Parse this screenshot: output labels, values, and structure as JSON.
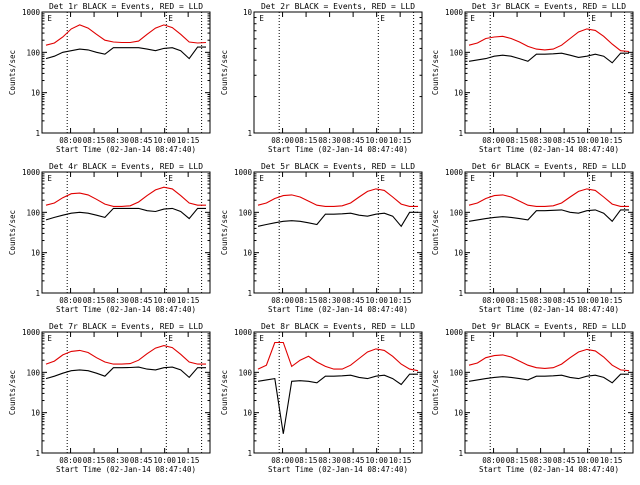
{
  "chart_data": [
    {
      "type": "line",
      "title": "Det 1r BLACK = Events, RED = LLD",
      "xlabel": "Start Time (02-Jan-14 08:47:40)",
      "ylabel": "Counts/sec",
      "ylim": [
        1,
        1000
      ],
      "yscale": "log",
      "x_ticks": [
        "08:00",
        "08:15",
        "08:30",
        "08:45",
        "10:00",
        "10:15"
      ],
      "markers": [
        "E",
        "E"
      ],
      "series": [
        {
          "name": "LLD",
          "color": "#e00000",
          "values": [
            150,
            170,
            240,
            380,
            480,
            400,
            280,
            200,
            180,
            175,
            175,
            190,
            280,
            400,
            480,
            410,
            280,
            180,
            170,
            175
          ]
        },
        {
          "name": "Events",
          "color": "#000000",
          "values": [
            70,
            80,
            100,
            110,
            120,
            115,
            100,
            90,
            130,
            130,
            130,
            130,
            120,
            110,
            125,
            130,
            110,
            70,
            135,
            135
          ]
        }
      ]
    },
    {
      "type": "line",
      "title": "Det 2r BLACK = Events, RED = LLD",
      "xlabel": "Start Time (02-Jan-14 08:47:40)",
      "ylabel": "Counts/sec",
      "ylim": [
        1,
        10
      ],
      "yscale": "log",
      "x_ticks": [
        "08:00",
        "08:15",
        "08:30",
        "08:45",
        "10:00",
        "10:15"
      ],
      "markers": [
        "E",
        "E"
      ],
      "series": []
    },
    {
      "type": "line",
      "title": "Det 3r BLACK = Events, RED = LLD",
      "xlabel": "Start Time (02-Jan-14 08:47:40)",
      "ylabel": "Counts/sec",
      "ylim": [
        1,
        1000
      ],
      "yscale": "log",
      "x_ticks": [
        "08:00",
        "08:15",
        "08:30",
        "08:45",
        "10:00",
        "10:15"
      ],
      "markers": [
        "E",
        "E"
      ],
      "series": [
        {
          "name": "LLD",
          "color": "#e00000",
          "values": [
            150,
            170,
            220,
            240,
            250,
            220,
            180,
            140,
            120,
            115,
            120,
            150,
            220,
            320,
            380,
            350,
            250,
            160,
            110,
            105
          ]
        },
        {
          "name": "Events",
          "color": "#000000",
          "values": [
            60,
            65,
            70,
            80,
            85,
            80,
            70,
            60,
            90,
            90,
            92,
            95,
            85,
            75,
            80,
            90,
            80,
            55,
            95,
            95
          ]
        }
      ]
    },
    {
      "type": "line",
      "title": "Det 4r BLACK = Events, RED = LLD",
      "xlabel": "Start Time (02-Jan-14 08:47:40)",
      "ylabel": "Counts/sec",
      "ylim": [
        1,
        1000
      ],
      "yscale": "log",
      "x_ticks": [
        "08:00",
        "08:15",
        "08:30",
        "08:45",
        "10:00",
        "10:15"
      ],
      "markers": [
        "E",
        "E"
      ],
      "series": [
        {
          "name": "LLD",
          "color": "#e00000",
          "values": [
            150,
            170,
            230,
            290,
            300,
            270,
            210,
            160,
            140,
            140,
            145,
            180,
            260,
            360,
            420,
            380,
            260,
            170,
            150,
            150
          ]
        },
        {
          "name": "Events",
          "color": "#000000",
          "values": [
            65,
            75,
            85,
            95,
            100,
            95,
            85,
            75,
            125,
            125,
            125,
            125,
            110,
            105,
            120,
            125,
            105,
            70,
            125,
            125
          ]
        }
      ]
    },
    {
      "type": "line",
      "title": "Det 5r BLACK = Events, RED = LLD",
      "xlabel": "Start Time (02-Jan-14 08:47:40)",
      "ylabel": "Counts/sec",
      "ylim": [
        1,
        1000
      ],
      "yscale": "log",
      "x_ticks": [
        "08:00",
        "08:15",
        "08:30",
        "08:45",
        "10:00",
        "10:15"
      ],
      "markers": [
        "E",
        "E"
      ],
      "series": [
        {
          "name": "LLD",
          "color": "#e00000",
          "values": [
            150,
            170,
            220,
            260,
            270,
            240,
            190,
            150,
            140,
            140,
            145,
            170,
            240,
            330,
            380,
            350,
            240,
            160,
            140,
            140
          ]
        },
        {
          "name": "Events",
          "color": "#000000",
          "values": [
            45,
            50,
            55,
            60,
            62,
            60,
            55,
            50,
            90,
            90,
            92,
            95,
            85,
            80,
            90,
            95,
            80,
            45,
            100,
            100
          ]
        }
      ]
    },
    {
      "type": "line",
      "title": "Det 6r BLACK = Events, RED = LLD",
      "xlabel": "Start Time (02-Jan-14 08:47:40)",
      "ylabel": "Counts/sec",
      "ylim": [
        1,
        1000
      ],
      "yscale": "log",
      "x_ticks": [
        "08:00",
        "08:15",
        "08:30",
        "08:45",
        "10:00",
        "10:15"
      ],
      "markers": [
        "E",
        "E"
      ],
      "series": [
        {
          "name": "LLD",
          "color": "#e00000",
          "values": [
            150,
            170,
            220,
            260,
            270,
            240,
            190,
            150,
            140,
            140,
            145,
            170,
            240,
            330,
            380,
            350,
            240,
            160,
            140,
            140
          ]
        },
        {
          "name": "Events",
          "color": "#000000",
          "values": [
            60,
            65,
            70,
            75,
            78,
            75,
            70,
            65,
            110,
            110,
            112,
            115,
            100,
            95,
            110,
            115,
            95,
            60,
            115,
            115
          ]
        }
      ]
    },
    {
      "type": "line",
      "title": "Det 7r BLACK = Events, RED = LLD",
      "xlabel": "Start Time (02-Jan-14 08:47:40)",
      "ylabel": "Counts/sec",
      "ylim": [
        1,
        1000
      ],
      "yscale": "log",
      "x_ticks": [
        "08:00",
        "08:15",
        "08:30",
        "08:45",
        "10:00",
        "10:15"
      ],
      "markers": [
        "E",
        "E"
      ],
      "series": [
        {
          "name": "LLD",
          "color": "#e00000",
          "values": [
            160,
            190,
            270,
            330,
            350,
            310,
            230,
            180,
            160,
            160,
            165,
            200,
            290,
            400,
            460,
            410,
            280,
            180,
            160,
            160
          ]
        },
        {
          "name": "Events",
          "color": "#000000",
          "values": [
            70,
            80,
            95,
            110,
            115,
            110,
            95,
            80,
            130,
            130,
            132,
            135,
            120,
            115,
            130,
            135,
            115,
            75,
            130,
            130
          ]
        }
      ]
    },
    {
      "type": "line",
      "title": "Det 8r BLACK = Events, RED = LLD",
      "xlabel": "Start Time (02-Jan-14 08:47:40)",
      "ylabel": "Counts/sec",
      "ylim": [
        1,
        1000
      ],
      "yscale": "log",
      "x_ticks": [
        "08:00",
        "08:15",
        "08:30",
        "08:45",
        "10:00",
        "10:15"
      ],
      "markers": [
        "E",
        "E"
      ],
      "series": [
        {
          "name": "LLD",
          "color": "#e00000",
          "values": [
            120,
            150,
            550,
            550,
            140,
            200,
            250,
            180,
            140,
            120,
            120,
            150,
            220,
            320,
            380,
            350,
            250,
            160,
            120,
            110
          ]
        },
        {
          "name": "Events",
          "color": "#000000",
          "values": [
            60,
            65,
            70,
            3,
            60,
            62,
            60,
            55,
            80,
            80,
            82,
            85,
            75,
            70,
            80,
            85,
            70,
            50,
            90,
            90
          ]
        }
      ]
    },
    {
      "type": "line",
      "title": "Det 9r BLACK = Events, RED = LLD",
      "xlabel": "Start Time (02-Jan-14 08:47:40)",
      "ylabel": "Counts/sec",
      "ylim": [
        1,
        1000
      ],
      "yscale": "log",
      "x_ticks": [
        "08:00",
        "08:15",
        "08:30",
        "08:45",
        "10:00",
        "10:15"
      ],
      "markers": [
        "E",
        "E"
      ],
      "series": [
        {
          "name": "LLD",
          "color": "#e00000",
          "values": [
            150,
            170,
            230,
            260,
            270,
            240,
            190,
            150,
            130,
            125,
            130,
            160,
            230,
            320,
            370,
            340,
            240,
            150,
            115,
            110
          ]
        },
        {
          "name": "Events",
          "color": "#000000",
          "values": [
            60,
            65,
            70,
            75,
            78,
            75,
            70,
            65,
            80,
            80,
            82,
            85,
            75,
            70,
            80,
            85,
            75,
            55,
            90,
            90
          ]
        }
      ]
    }
  ]
}
